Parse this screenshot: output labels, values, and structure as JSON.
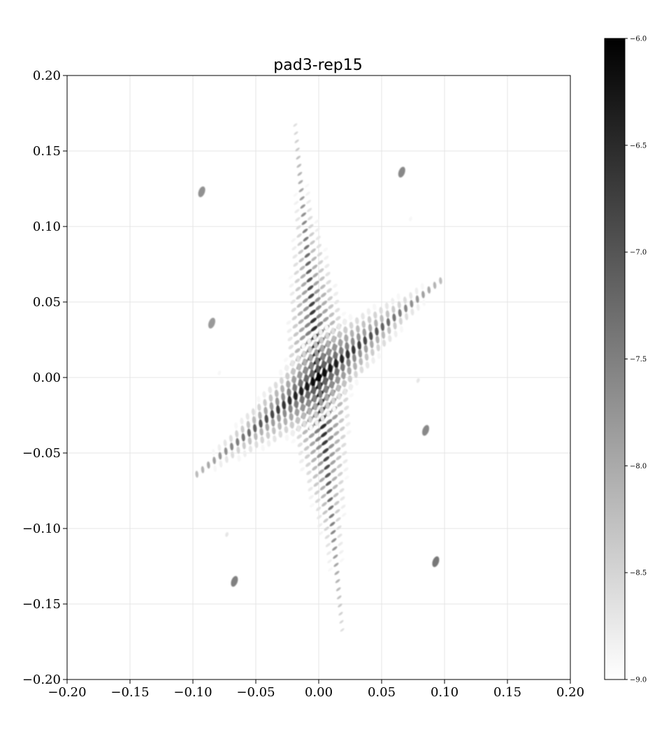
{
  "chart_data": {
    "type": "heatmap",
    "title": "pad3-rep15",
    "xlabel": "",
    "ylabel": "",
    "xlim": [
      -0.2,
      0.2
    ],
    "ylim": [
      -0.2,
      0.2
    ],
    "xticks": [
      -0.2,
      -0.15,
      -0.1,
      -0.05,
      0.0,
      0.05,
      0.1,
      0.15,
      0.2
    ],
    "xtick_labels": [
      "−0.20",
      "−0.15",
      "−0.10",
      "−0.05",
      "0.00",
      "0.05",
      "0.10",
      "0.15",
      "0.20"
    ],
    "yticks": [
      0.2,
      0.15,
      0.1,
      0.05,
      0.0,
      -0.05,
      -0.1,
      -0.15,
      -0.2
    ],
    "ytick_labels": [
      "0.20",
      "0.15",
      "0.10",
      "0.05",
      "0.00",
      "−0.05",
      "−0.10",
      "−0.15",
      "−0.20"
    ],
    "grid": true,
    "colormap": "gray_r",
    "colorbar": {
      "range": [
        -9.0,
        -6.0
      ],
      "ticks": [
        -6.0,
        -6.5,
        -7.0,
        -7.5,
        -8.0,
        -8.5,
        -9.0
      ],
      "tick_labels": [
        "−6.0",
        "−6.5",
        "−7.0",
        "−7.5",
        "−8.0",
        "−8.5",
        "−9.0"
      ]
    },
    "streaks": [
      {
        "name": "steep",
        "from": [
          -0.019,
          0.17
        ],
        "to": [
          0.019,
          -0.17
        ],
        "peak_value": -6.0,
        "edge_value": -8.6
      },
      {
        "name": "shallow",
        "from": [
          -0.1,
          -0.066
        ],
        "to": [
          0.101,
          0.067
        ],
        "peak_value": -6.0,
        "edge_value": -8.2
      }
    ],
    "spots": [
      {
        "x": 0.066,
        "y": 0.136,
        "value": -7.6
      },
      {
        "x": -0.093,
        "y": 0.123,
        "value": -7.7
      },
      {
        "x": 0.073,
        "y": 0.105,
        "value": -8.9
      },
      {
        "x": -0.085,
        "y": 0.036,
        "value": -7.8
      },
      {
        "x": -0.079,
        "y": 0.003,
        "value": -8.9
      },
      {
        "x": 0.079,
        "y": -0.002,
        "value": -8.7
      },
      {
        "x": 0.085,
        "y": -0.035,
        "value": -7.6
      },
      {
        "x": -0.073,
        "y": -0.104,
        "value": -8.7
      },
      {
        "x": 0.093,
        "y": -0.122,
        "value": -7.4
      },
      {
        "x": -0.067,
        "y": -0.135,
        "value": -7.5
      }
    ]
  }
}
